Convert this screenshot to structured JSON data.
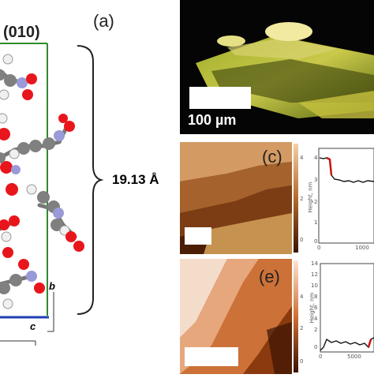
{
  "crystal": {
    "plane_label": "(010)",
    "axis_b": "b",
    "axis_c": "c",
    "spacing_label": "19.13 Å"
  },
  "microscope": {
    "panel_label": "(a)",
    "scale_bar_text": "100 µm"
  },
  "afm_c": {
    "panel_label": "(c)",
    "scalebar_ticks": [
      "4",
      "2",
      "0"
    ]
  },
  "afm_e": {
    "panel_label": "(e)",
    "scalebar_ticks": [
      "4",
      "2",
      "0"
    ]
  },
  "profile_top": {
    "ylabel": "Height, nm",
    "y_ticks": [
      "4",
      "3",
      "2",
      "1",
      "0"
    ],
    "x_ticks": [
      "0",
      "1000"
    ],
    "colors": {
      "line": "#111111",
      "highlight": "#cc1111"
    }
  },
  "profile_bottom": {
    "ylabel": "Height, nm",
    "y_ticks": [
      "14",
      "12",
      "10",
      "8",
      "6",
      "4",
      "2",
      "0"
    ],
    "x_ticks": [
      "0",
      "5000"
    ],
    "colors": {
      "line": "#111111",
      "highlight": "#cc1111"
    }
  },
  "colors": {
    "oxygen": "#e8161c",
    "carbon": "#808080",
    "nitrogen": "#9a9ad8",
    "hydrogen": "#f0f0f0",
    "cell_edge": "#2e8b2e",
    "cell_edge_b": "#1f3fb0"
  }
}
